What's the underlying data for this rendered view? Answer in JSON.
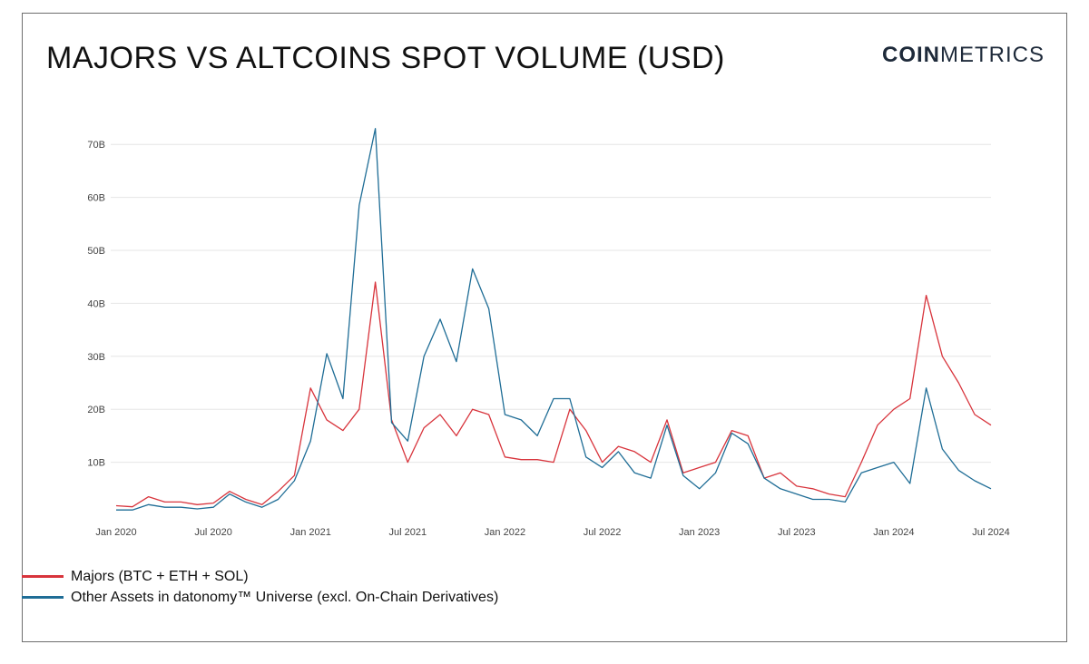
{
  "header": {
    "title": "MAJORS VS ALTCOINS SPOT VOLUME (USD)",
    "logo_bold": "COIN",
    "logo_light": "METRICS"
  },
  "colors": {
    "majors": "#d8343c",
    "others": "#1f6d96",
    "grid": "#e6e6e6",
    "frame": "#6e6e6e"
  },
  "chart_data": {
    "type": "line",
    "title": "MAJORS VS ALTCOINS SPOT VOLUME (USD)",
    "xlabel": "",
    "ylabel": "",
    "ylim": [
      0,
      75
    ],
    "y_unit": "B USD",
    "yticks": [
      {
        "value": 10,
        "label": "10B"
      },
      {
        "value": 20,
        "label": "20B"
      },
      {
        "value": 30,
        "label": "30B"
      },
      {
        "value": 40,
        "label": "40B"
      },
      {
        "value": 50,
        "label": "50B"
      },
      {
        "value": 60,
        "label": "60B"
      },
      {
        "value": 70,
        "label": "70B"
      }
    ],
    "xticks": [
      {
        "value": "2020-01",
        "label": "Jan 2020"
      },
      {
        "value": "2020-07",
        "label": "Jul 2020"
      },
      {
        "value": "2021-01",
        "label": "Jan 2021"
      },
      {
        "value": "2021-07",
        "label": "Jul 2021"
      },
      {
        "value": "2022-01",
        "label": "Jan 2022"
      },
      {
        "value": "2022-07",
        "label": "Jul 2022"
      },
      {
        "value": "2023-01",
        "label": "Jan 2023"
      },
      {
        "value": "2023-07",
        "label": "Jul 2023"
      },
      {
        "value": "2024-01",
        "label": "Jan 2024"
      },
      {
        "value": "2024-07",
        "label": "Jul 2024"
      }
    ],
    "xlim": [
      "2020-01",
      "2024-07"
    ],
    "grid": true,
    "legend_position": "bottom-left",
    "series": [
      {
        "name": "Majors (BTC + ETH + SOL)",
        "color": "#d8343c",
        "points": [
          [
            "2020-01",
            1.8
          ],
          [
            "2020-02",
            1.6
          ],
          [
            "2020-03",
            3.5
          ],
          [
            "2020-04",
            2.5
          ],
          [
            "2020-05",
            2.5
          ],
          [
            "2020-06",
            2.0
          ],
          [
            "2020-07",
            2.3
          ],
          [
            "2020-08",
            4.5
          ],
          [
            "2020-09",
            3.0
          ],
          [
            "2020-10",
            2.0
          ],
          [
            "2020-11",
            4.5
          ],
          [
            "2020-12",
            7.5
          ],
          [
            "2021-01",
            24.0
          ],
          [
            "2021-02",
            18.0
          ],
          [
            "2021-03",
            16.0
          ],
          [
            "2021-04",
            20.0
          ],
          [
            "2021-05",
            44.0
          ],
          [
            "2021-06",
            18.0
          ],
          [
            "2021-07",
            10.0
          ],
          [
            "2021-08",
            16.5
          ],
          [
            "2021-09",
            19.0
          ],
          [
            "2021-10",
            15.0
          ],
          [
            "2021-11",
            20.0
          ],
          [
            "2021-12",
            19.0
          ],
          [
            "2022-01",
            11.0
          ],
          [
            "2022-02",
            10.5
          ],
          [
            "2022-03",
            10.5
          ],
          [
            "2022-04",
            10.0
          ],
          [
            "2022-05",
            20.0
          ],
          [
            "2022-06",
            16.0
          ],
          [
            "2022-07",
            10.0
          ],
          [
            "2022-08",
            13.0
          ],
          [
            "2022-09",
            12.0
          ],
          [
            "2022-10",
            10.0
          ],
          [
            "2022-11",
            18.0
          ],
          [
            "2022-12",
            8.0
          ],
          [
            "2023-01",
            9.0
          ],
          [
            "2023-02",
            10.0
          ],
          [
            "2023-03",
            16.0
          ],
          [
            "2023-04",
            15.0
          ],
          [
            "2023-05",
            7.0
          ],
          [
            "2023-06",
            8.0
          ],
          [
            "2023-07",
            5.5
          ],
          [
            "2023-08",
            5.0
          ],
          [
            "2023-09",
            4.0
          ],
          [
            "2023-10",
            3.5
          ],
          [
            "2023-11",
            10.0
          ],
          [
            "2023-12",
            17.0
          ],
          [
            "2024-01",
            20.0
          ],
          [
            "2024-02",
            22.0
          ],
          [
            "2024-03",
            41.5
          ],
          [
            "2024-04",
            30.0
          ],
          [
            "2024-05",
            25.0
          ],
          [
            "2024-06",
            19.0
          ],
          [
            "2024-07",
            17.0
          ]
        ]
      },
      {
        "name": "Other Assets in datonomy™ Universe (excl. On-Chain Derivatives)",
        "color": "#1f6d96",
        "points": [
          [
            "2020-01",
            1.0
          ],
          [
            "2020-02",
            1.0
          ],
          [
            "2020-03",
            2.0
          ],
          [
            "2020-04",
            1.5
          ],
          [
            "2020-05",
            1.5
          ],
          [
            "2020-06",
            1.2
          ],
          [
            "2020-07",
            1.5
          ],
          [
            "2020-08",
            4.0
          ],
          [
            "2020-09",
            2.5
          ],
          [
            "2020-10",
            1.5
          ],
          [
            "2020-11",
            3.0
          ],
          [
            "2020-12",
            6.5
          ],
          [
            "2021-01",
            14.0
          ],
          [
            "2021-02",
            30.5
          ],
          [
            "2021-03",
            22.0
          ],
          [
            "2021-04",
            58.5
          ],
          [
            "2021-05",
            73.0
          ],
          [
            "2021-06",
            17.5
          ],
          [
            "2021-07",
            14.0
          ],
          [
            "2021-08",
            30.0
          ],
          [
            "2021-09",
            37.0
          ],
          [
            "2021-10",
            29.0
          ],
          [
            "2021-11",
            46.5
          ],
          [
            "2021-12",
            39.0
          ],
          [
            "2022-01",
            19.0
          ],
          [
            "2022-02",
            18.0
          ],
          [
            "2022-03",
            15.0
          ],
          [
            "2022-04",
            22.0
          ],
          [
            "2022-05",
            22.0
          ],
          [
            "2022-06",
            11.0
          ],
          [
            "2022-07",
            9.0
          ],
          [
            "2022-08",
            12.0
          ],
          [
            "2022-09",
            8.0
          ],
          [
            "2022-10",
            7.0
          ],
          [
            "2022-11",
            17.0
          ],
          [
            "2022-12",
            7.5
          ],
          [
            "2023-01",
            5.0
          ],
          [
            "2023-02",
            8.0
          ],
          [
            "2023-03",
            15.5
          ],
          [
            "2023-04",
            13.5
          ],
          [
            "2023-05",
            7.0
          ],
          [
            "2023-06",
            5.0
          ],
          [
            "2023-07",
            4.0
          ],
          [
            "2023-08",
            3.0
          ],
          [
            "2023-09",
            3.0
          ],
          [
            "2023-10",
            2.5
          ],
          [
            "2023-11",
            8.0
          ],
          [
            "2023-12",
            9.0
          ],
          [
            "2024-01",
            10.0
          ],
          [
            "2024-02",
            6.0
          ],
          [
            "2024-03",
            24.0
          ],
          [
            "2024-04",
            12.5
          ],
          [
            "2024-05",
            8.5
          ],
          [
            "2024-06",
            6.5
          ],
          [
            "2024-07",
            5.0
          ]
        ]
      }
    ]
  }
}
